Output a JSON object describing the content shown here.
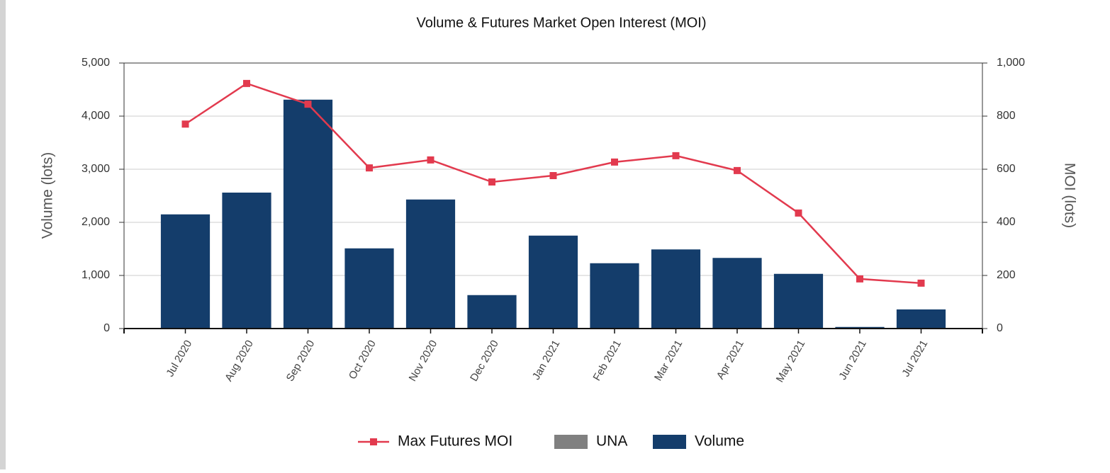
{
  "chart_data": {
    "type": "bar_line",
    "title": "Volume & Futures Market Open Interest (MOI)",
    "ylabel": "Volume (lots)",
    "y2label": "MOI (lots)",
    "categories": [
      "Jul 2020",
      "Aug 2020",
      "Sep 2020",
      "Oct 2020",
      "Nov 2020",
      "Dec 2020",
      "Jan 2021",
      "Feb 2021",
      "Mar 2021",
      "Apr 2021",
      "May 2021",
      "Jun 2021",
      "Jul 2021"
    ],
    "series": [
      {
        "name": "Max Futures MOI",
        "color": "#e23a4e",
        "type": "line",
        "axis": "y2",
        "values": [
          770,
          923,
          845,
          605,
          635,
          552,
          576,
          627,
          651,
          595,
          435,
          187,
          171
        ]
      },
      {
        "name": "UNA",
        "color": "#808080",
        "type": "bar",
        "values": [
          0,
          0,
          0,
          0,
          0,
          0,
          0,
          0,
          0,
          0,
          0,
          0,
          0
        ]
      },
      {
        "name": "Volume",
        "color": "#143d6b",
        "type": "bar",
        "values": [
          2150,
          2560,
          4310,
          1510,
          2430,
          630,
          1750,
          1230,
          1490,
          1330,
          1030,
          30,
          360
        ]
      }
    ],
    "ylim": [
      0,
      5000
    ],
    "yticks": [
      0,
      {
        "value": 1000,
        "label": "1,000"
      },
      {
        "value": 2000,
        "label": "2,000"
      },
      {
        "value": 3000,
        "label": "3,000"
      },
      {
        "value": 4000,
        "label": "4,000"
      },
      {
        "value": 5000,
        "label": "5,000"
      }
    ],
    "y2lim": [
      0,
      1000
    ],
    "y2ticks": [
      0,
      200,
      400,
      600,
      800,
      {
        "value": 1000,
        "label": "1,000"
      }
    ],
    "grid": true,
    "legend": "bottom"
  }
}
